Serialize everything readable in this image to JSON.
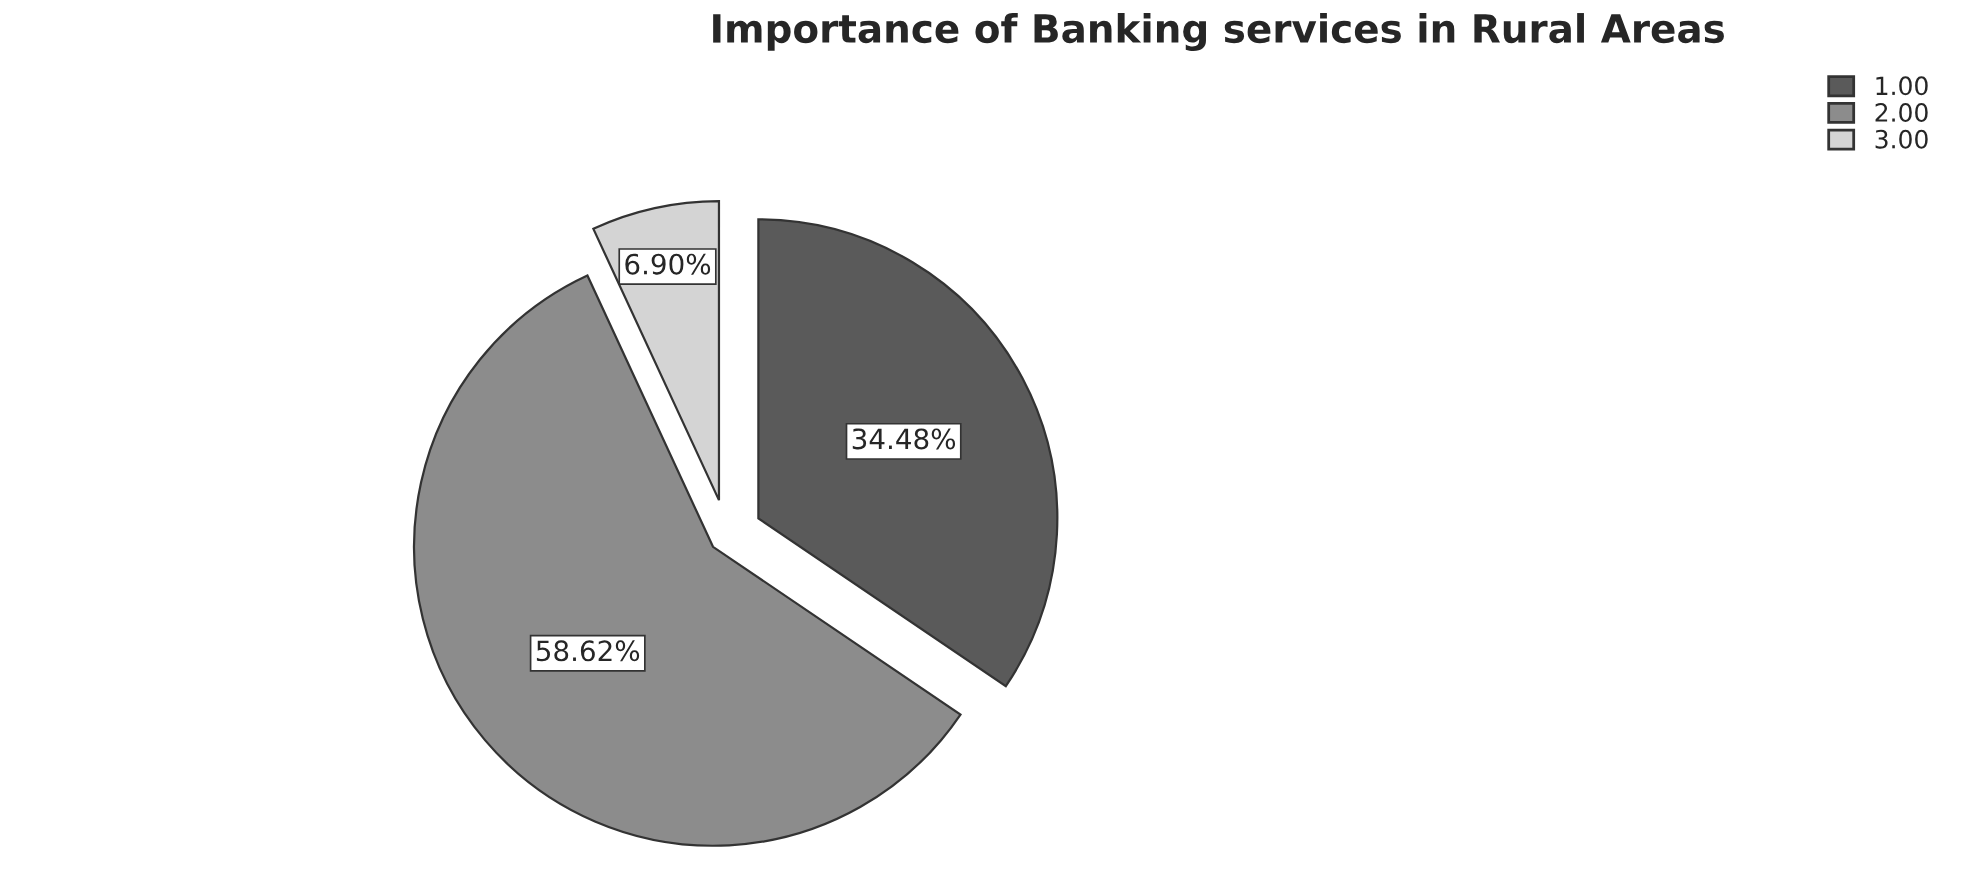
{
  "chart_data": {
    "type": "pie",
    "title": "Importance of Banking services in Rural Areas",
    "categories": [
      "1.00",
      "2.00",
      "3.00"
    ],
    "values": [
      34.48,
      58.62,
      6.9
    ],
    "colors": [
      "#5a5a5a",
      "#8c8c8c",
      "#d4d4d4"
    ],
    "value_labels": [
      "34.48%",
      "58.62%",
      "6.90%"
    ],
    "legend": "top right"
  }
}
